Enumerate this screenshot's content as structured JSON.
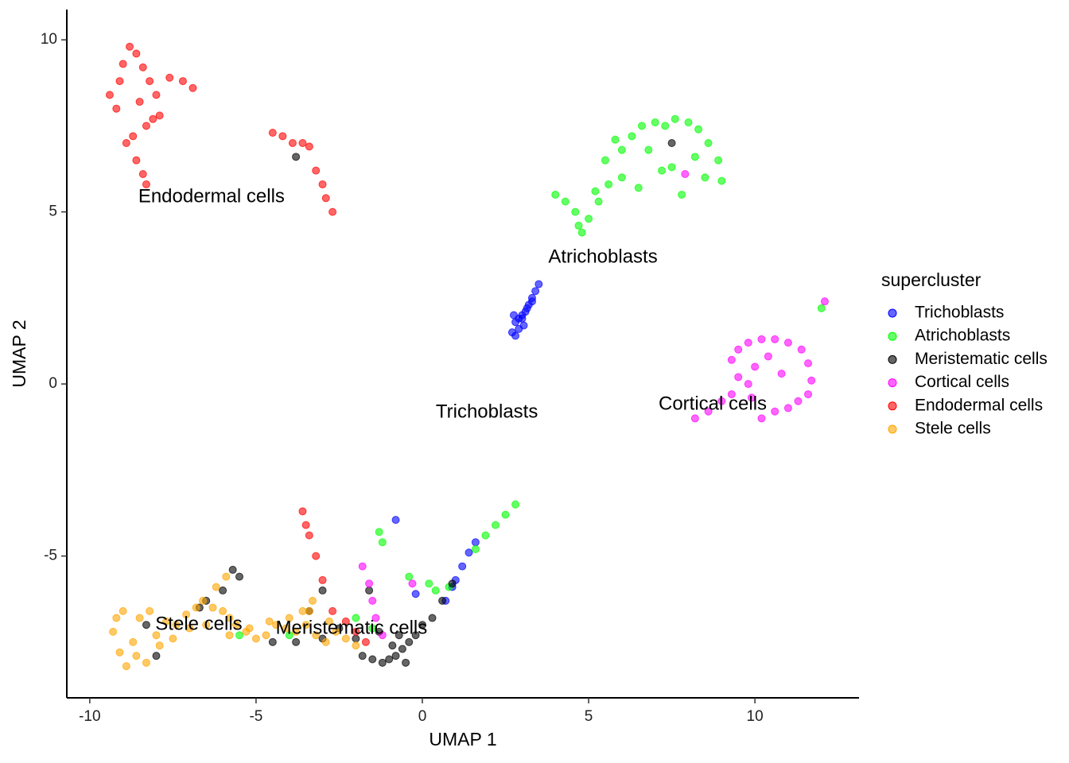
{
  "chart_data": {
    "type": "scatter",
    "x_label": "UMAP 1",
    "y_label": "UMAP 2",
    "legend_title": "supercluster",
    "legend_position": "right",
    "xlim": [
      -10.69,
      13.13
    ],
    "ylim": [
      -9.12,
      10.88
    ],
    "xticks": [
      -10,
      -5,
      0,
      5,
      10
    ],
    "yticks": [
      -5,
      0,
      5,
      10
    ],
    "grid": false,
    "annotations": [
      {
        "text": "Endodermal cells",
        "x": -6.34,
        "y": 5.43
      },
      {
        "text": "Atrichoblasts",
        "x": 5.43,
        "y": 3.67
      },
      {
        "text": "Trichoblasts",
        "x": 1.94,
        "y": -0.83
      },
      {
        "text": "Cortical cells",
        "x": 8.73,
        "y": -0.6
      },
      {
        "text": "Stele cells",
        "x": -6.72,
        "y": -7.0
      },
      {
        "text": "Meristematic cells",
        "x": -2.13,
        "y": -7.11
      }
    ],
    "series": [
      {
        "name": "Trichoblasts",
        "color": "#0000ff",
        "x": [
          2.7,
          2.8,
          2.9,
          3.0,
          3.1,
          3.2,
          3.3,
          3.4,
          3.5,
          2.75,
          2.9,
          3.05,
          3.15,
          3.3,
          2.8,
          3.0,
          -0.8,
          1.6,
          1.4,
          1.2,
          1.0,
          0.9,
          0.7,
          -0.2
        ],
        "values": [
          1.5,
          1.8,
          1.9,
          2.0,
          2.1,
          2.3,
          2.5,
          2.7,
          2.9,
          2.0,
          1.6,
          1.7,
          2.2,
          2.4,
          1.4,
          1.9,
          -3.95,
          -4.6,
          -4.9,
          -5.3,
          -5.7,
          -5.9,
          -6.3,
          -6.1
        ]
      },
      {
        "name": "Atrichoblasts",
        "color": "#00ff00",
        "x": [
          4.0,
          4.3,
          4.6,
          4.8,
          5.0,
          5.3,
          5.6,
          5.5,
          6.0,
          6.3,
          6.6,
          7.0,
          7.3,
          7.6,
          8.0,
          8.3,
          8.6,
          8.9,
          9.0,
          8.5,
          7.8,
          7.2,
          6.5,
          6.0,
          5.2,
          5.8,
          6.8,
          7.5,
          8.2,
          4.7,
          12.0,
          -1.3,
          -1.2,
          2.8,
          2.5,
          2.2,
          1.9,
          1.6,
          -0.4,
          0.2,
          0.8,
          0.4,
          -4.0,
          -5.5,
          -2.0,
          -1.5
        ],
        "values": [
          5.5,
          5.3,
          5.0,
          4.4,
          4.8,
          5.3,
          5.8,
          6.5,
          6.8,
          7.2,
          7.5,
          7.6,
          7.5,
          7.7,
          7.6,
          7.4,
          7.0,
          6.5,
          5.9,
          6.0,
          5.5,
          6.2,
          5.7,
          6.0,
          5.6,
          7.1,
          6.8,
          6.3,
          6.6,
          4.6,
          2.2,
          -4.3,
          -4.6,
          -3.5,
          -3.8,
          -4.1,
          -4.4,
          -4.8,
          -5.6,
          -5.8,
          -5.9,
          -6.0,
          -7.3,
          -7.3,
          -6.8,
          -7.1
        ]
      },
      {
        "name": "Meristematic cells",
        "color": "#000000",
        "x": [
          -1.5,
          -1.2,
          -1.0,
          -0.8,
          -0.6,
          -0.4,
          -0.2,
          0.0,
          0.3,
          0.6,
          0.9,
          -0.9,
          -0.5,
          -1.3,
          -0.7,
          -2.0,
          -2.5,
          -3.0,
          -3.4,
          -3.0,
          -5.7,
          -5.5,
          -6.0,
          -6.5,
          -6.7,
          -8.3,
          -8.0,
          -4.5,
          -3.8,
          -1.6,
          -1.8,
          -3.8,
          7.5
        ],
        "values": [
          -8.0,
          -8.1,
          -8.0,
          -7.9,
          -7.7,
          -7.5,
          -7.3,
          -7.0,
          -6.8,
          -6.3,
          -5.8,
          -7.6,
          -8.1,
          -7.2,
          -7.3,
          -7.4,
          -7.1,
          -7.4,
          -6.6,
          -6.0,
          -5.4,
          -5.6,
          -6.0,
          -6.3,
          -6.5,
          -7.0,
          -7.9,
          -7.5,
          -7.5,
          -6.0,
          -7.9,
          6.6,
          7.0
        ]
      },
      {
        "name": "Cortical cells",
        "color": "#ff00ff",
        "x": [
          8.2,
          8.6,
          9.0,
          9.3,
          9.5,
          9.3,
          9.5,
          9.8,
          10.2,
          10.6,
          11.0,
          11.4,
          11.6,
          11.7,
          11.6,
          11.3,
          11.0,
          10.6,
          10.2,
          9.9,
          10.0,
          10.4,
          10.8,
          9.8,
          12.1,
          -1.8,
          -1.6,
          -1.5,
          -1.4,
          -1.2,
          -0.3,
          7.9
        ],
        "values": [
          -1.0,
          -0.8,
          -0.5,
          -0.3,
          0.2,
          0.7,
          1.0,
          1.2,
          1.3,
          1.3,
          1.2,
          1.0,
          0.6,
          0.1,
          -0.3,
          -0.5,
          -0.7,
          -0.8,
          -1.0,
          -0.4,
          0.5,
          0.8,
          0.3,
          0.0,
          2.4,
          -5.3,
          -5.8,
          -6.3,
          -6.8,
          -7.3,
          -5.8,
          6.1
        ]
      },
      {
        "name": "Endodermal cells",
        "color": "#ff0000",
        "x": [
          -9.4,
          -9.2,
          -9.0,
          -8.8,
          -8.6,
          -8.4,
          -8.2,
          -8.0,
          -7.9,
          -8.3,
          -8.7,
          -9.1,
          -8.5,
          -8.1,
          -8.9,
          -8.6,
          -8.4,
          -8.3,
          -7.6,
          -7.2,
          -6.9,
          -4.5,
          -4.2,
          -3.9,
          -3.6,
          -3.4,
          -3.2,
          -3.0,
          -2.9,
          -2.7,
          -3.6,
          -3.5,
          -3.4,
          -3.2,
          -3.0,
          -2.7,
          -2.3,
          -2.0,
          -1.7
        ],
        "values": [
          8.4,
          8.0,
          9.3,
          9.8,
          9.6,
          9.2,
          8.8,
          8.4,
          7.8,
          7.5,
          7.2,
          8.8,
          8.2,
          7.7,
          7.0,
          6.5,
          6.1,
          5.8,
          8.9,
          8.8,
          8.6,
          7.3,
          7.2,
          7.0,
          7.0,
          6.9,
          6.2,
          5.8,
          5.4,
          5.0,
          -3.7,
          -4.1,
          -4.4,
          -5.0,
          -5.7,
          -6.6,
          -6.9,
          -7.2,
          -7.5
        ]
      },
      {
        "name": "Stele cells",
        "color": "#ffa500",
        "x": [
          -9.3,
          -9.1,
          -8.9,
          -8.7,
          -8.5,
          -8.2,
          -8.0,
          -7.7,
          -7.4,
          -7.1,
          -6.8,
          -6.6,
          -6.3,
          -6.0,
          -5.8,
          -5.6,
          -5.3,
          -5.0,
          -4.7,
          -4.4,
          -4.1,
          -3.8,
          -3.5,
          -3.2,
          -2.9,
          -2.6,
          -2.3,
          -2.0,
          -9.2,
          -9.0,
          -8.6,
          -8.3,
          -7.9,
          -7.5,
          -7.0,
          -6.5,
          -5.8,
          -5.2,
          -4.6,
          -4.0,
          -3.4,
          -2.8,
          -6.2,
          -5.9,
          -3.6,
          -3.3
        ],
        "values": [
          -7.2,
          -7.8,
          -8.2,
          -7.5,
          -6.8,
          -6.6,
          -7.3,
          -6.9,
          -7.0,
          -6.7,
          -6.5,
          -6.3,
          -6.5,
          -6.6,
          -6.8,
          -7.0,
          -7.2,
          -7.4,
          -7.3,
          -7.0,
          -7.1,
          -7.2,
          -7.0,
          -7.3,
          -7.5,
          -7.2,
          -7.4,
          -7.6,
          -6.8,
          -6.6,
          -7.9,
          -8.1,
          -7.6,
          -7.4,
          -7.1,
          -7.0,
          -7.3,
          -7.1,
          -6.9,
          -6.8,
          -6.6,
          -6.9,
          -5.9,
          -5.6,
          -6.6,
          -6.3
        ]
      }
    ]
  }
}
